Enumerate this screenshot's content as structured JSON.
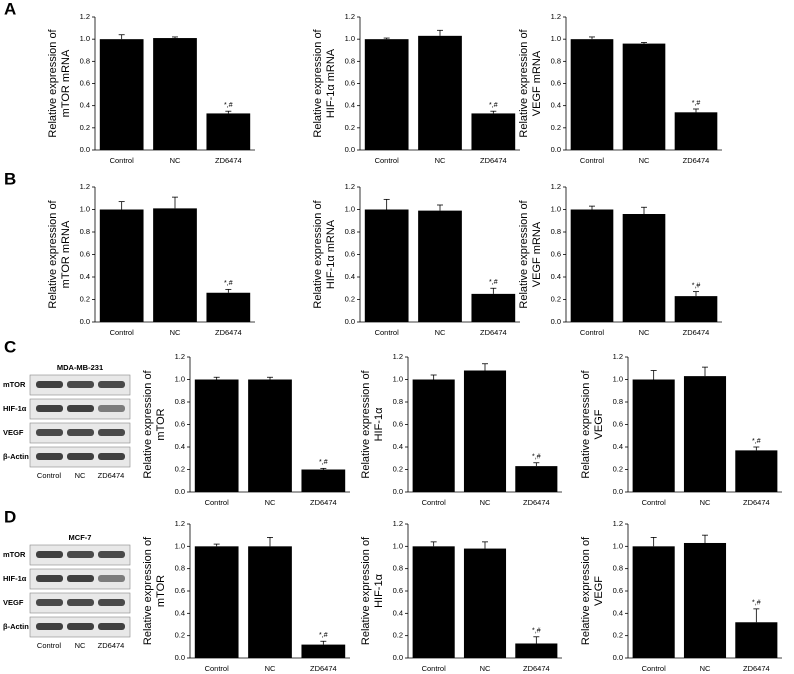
{
  "panel_labels": [
    "A",
    "B",
    "C",
    "D"
  ],
  "blots": [
    {
      "title": "MDA-MB-231",
      "rows": [
        "mTOR",
        "HIF-1α",
        "VEGF",
        "β-Actin"
      ],
      "lanes": [
        "Control",
        "NC",
        "ZD6474"
      ]
    },
    {
      "title": "MCF-7",
      "rows": [
        "mTOR",
        "HIF-1α",
        "VEGF",
        "β-Actin"
      ],
      "lanes": [
        "Control",
        "NC",
        "ZD6474"
      ]
    }
  ],
  "chart_data": [
    {
      "type": "bar",
      "ylabel": [
        "Relative expression of",
        "mTOR mRNA"
      ],
      "categories": [
        "Control",
        "NC",
        "ZD6474"
      ],
      "values": [
        1.0,
        1.01,
        0.33
      ],
      "errors": [
        0.04,
        0.01,
        0.02
      ],
      "color": "#000000",
      "annotations": [
        {
          "category": "ZD6474",
          "text": "*,#"
        }
      ],
      "ylim": [
        0,
        1.2
      ],
      "yticks": [
        {
          "value": 0,
          "label": "0.0"
        },
        0.2,
        0.4,
        0.6,
        0.8,
        {
          "value": 1,
          "label": "1.0"
        },
        1.2
      ]
    },
    {
      "type": "bar",
      "ylabel": [
        "Relative expression of",
        "HIF-1α mRNA"
      ],
      "categories": [
        "Control",
        "NC",
        "ZD6474"
      ],
      "values": [
        1.0,
        1.03,
        0.33
      ],
      "errors": [
        0.01,
        0.05,
        0.02
      ],
      "color": "#000000",
      "annotations": [
        {
          "category": "ZD6474",
          "text": "*,#"
        }
      ],
      "ylim": [
        0,
        1.2
      ],
      "yticks": [
        {
          "value": 0,
          "label": "0.0"
        },
        0.2,
        0.4,
        0.6,
        0.8,
        {
          "value": 1,
          "label": "1.0"
        },
        1.2
      ]
    },
    {
      "type": "bar",
      "ylabel": [
        "Relative expression of",
        "VEGF mRNA"
      ],
      "categories": [
        "Control",
        "NC",
        "ZD6474"
      ],
      "values": [
        1.0,
        0.96,
        0.34
      ],
      "errors": [
        0.02,
        0.01,
        0.03
      ],
      "color": "#000000",
      "annotations": [
        {
          "category": "ZD6474",
          "text": "*,#"
        }
      ],
      "ylim": [
        0,
        1.2
      ],
      "yticks": [
        {
          "value": 0,
          "label": "0.0"
        },
        0.2,
        0.4,
        0.6,
        0.8,
        {
          "value": 1,
          "label": "1.0"
        },
        1.2
      ]
    },
    {
      "type": "bar",
      "ylabel": [
        "Relative expression of",
        "mTOR mRNA"
      ],
      "categories": [
        "Control",
        "NC",
        "ZD6474"
      ],
      "values": [
        1.0,
        1.01,
        0.26
      ],
      "errors": [
        0.07,
        0.1,
        0.03
      ],
      "color": "#000000",
      "annotations": [
        {
          "category": "ZD6474",
          "text": "*,#"
        }
      ],
      "ylim": [
        0,
        1.2
      ],
      "yticks": [
        {
          "value": 0,
          "label": "0.0"
        },
        0.2,
        0.4,
        0.6,
        0.8,
        {
          "value": 1,
          "label": "1.0"
        },
        1.2
      ]
    },
    {
      "type": "bar",
      "ylabel": [
        "Relative expression of",
        "HIF-1α mRNA"
      ],
      "categories": [
        "Control",
        "NC",
        "ZD6474"
      ],
      "values": [
        1.0,
        0.99,
        0.25
      ],
      "errors": [
        0.09,
        0.05,
        0.05
      ],
      "color": "#000000",
      "annotations": [
        {
          "category": "ZD6474",
          "text": "*,#"
        }
      ],
      "ylim": [
        0,
        1.2
      ],
      "yticks": [
        {
          "value": 0,
          "label": "0.0"
        },
        0.2,
        0.4,
        0.6,
        0.8,
        {
          "value": 1,
          "label": "1.0"
        },
        1.2
      ]
    },
    {
      "type": "bar",
      "ylabel": [
        "Relative expression of",
        "VEGF mRNA"
      ],
      "categories": [
        "Control",
        "NC",
        "ZD6474"
      ],
      "values": [
        1.0,
        0.96,
        0.23
      ],
      "errors": [
        0.03,
        0.06,
        0.04
      ],
      "color": "#000000",
      "annotations": [
        {
          "category": "ZD6474",
          "text": "*,#"
        }
      ],
      "ylim": [
        0,
        1.2
      ],
      "yticks": [
        {
          "value": 0,
          "label": "0.0"
        },
        0.2,
        0.4,
        0.6,
        0.8,
        {
          "value": 1,
          "label": "1.0"
        },
        1.2
      ]
    },
    {
      "type": "bar",
      "ylabel": [
        "Relative expression of",
        "mTOR"
      ],
      "categories": [
        "Control",
        "NC",
        "ZD6474"
      ],
      "values": [
        1.0,
        1.0,
        0.2
      ],
      "errors": [
        0.02,
        0.02,
        0.01
      ],
      "color": "#000000",
      "annotations": [
        {
          "category": "ZD6474",
          "text": "*,#"
        }
      ],
      "ylim": [
        0,
        1.2
      ],
      "yticks": [
        {
          "value": 0,
          "label": "0.0"
        },
        0.2,
        0.4,
        0.6,
        0.8,
        {
          "value": 1,
          "label": "1.0"
        },
        1.2
      ]
    },
    {
      "type": "bar",
      "ylabel": [
        "Relative expression of",
        "HIF-1α"
      ],
      "categories": [
        "Control",
        "NC",
        "ZD6474"
      ],
      "values": [
        1.0,
        1.08,
        0.23
      ],
      "errors": [
        0.04,
        0.06,
        0.03
      ],
      "color": "#000000",
      "annotations": [
        {
          "category": "ZD6474",
          "text": "*,#"
        }
      ],
      "ylim": [
        0,
        1.2
      ],
      "yticks": [
        {
          "value": 0,
          "label": "0.0"
        },
        0.2,
        0.4,
        0.6,
        0.8,
        {
          "value": 1,
          "label": "1.0"
        },
        1.2
      ]
    },
    {
      "type": "bar",
      "ylabel": [
        "Relative expression of",
        "VEGF"
      ],
      "categories": [
        "Control",
        "NC",
        "ZD6474"
      ],
      "values": [
        1.0,
        1.03,
        0.37
      ],
      "errors": [
        0.08,
        0.08,
        0.03
      ],
      "color": "#000000",
      "annotations": [
        {
          "category": "ZD6474",
          "text": "*,#"
        }
      ],
      "ylim": [
        0,
        1.2
      ],
      "yticks": [
        {
          "value": 0,
          "label": "0.0"
        },
        0.2,
        0.4,
        0.6,
        0.8,
        {
          "value": 1,
          "label": "1.0"
        },
        1.2
      ]
    },
    {
      "type": "bar",
      "ylabel": [
        "Relative expression of",
        "mTOR"
      ],
      "categories": [
        "Control",
        "NC",
        "ZD6474"
      ],
      "values": [
        1.0,
        1.0,
        0.12
      ],
      "errors": [
        0.02,
        0.08,
        0.03
      ],
      "color": "#000000",
      "annotations": [
        {
          "category": "ZD6474",
          "text": "*,#"
        }
      ],
      "ylim": [
        0,
        1.2
      ],
      "yticks": [
        {
          "value": 0,
          "label": "0.0"
        },
        0.2,
        0.4,
        0.6,
        0.8,
        {
          "value": 1,
          "label": "1.0"
        },
        1.2
      ]
    },
    {
      "type": "bar",
      "ylabel": [
        "Relative expression of",
        "HIF-1α"
      ],
      "categories": [
        "Control",
        "NC",
        "ZD6474"
      ],
      "values": [
        1.0,
        0.98,
        0.13
      ],
      "errors": [
        0.04,
        0.06,
        0.06
      ],
      "color": "#000000",
      "annotations": [
        {
          "category": "ZD6474",
          "text": "*,#"
        }
      ],
      "ylim": [
        0,
        1.2
      ],
      "yticks": [
        {
          "value": 0,
          "label": "0.0"
        },
        0.2,
        0.4,
        0.6,
        0.8,
        {
          "value": 1,
          "label": "1.0"
        },
        1.2
      ]
    },
    {
      "type": "bar",
      "ylabel": [
        "Relative expression of",
        "VEGF"
      ],
      "categories": [
        "Control",
        "NC",
        "ZD6474"
      ],
      "values": [
        1.0,
        1.03,
        0.32
      ],
      "errors": [
        0.08,
        0.07,
        0.12
      ],
      "color": "#000000",
      "annotations": [
        {
          "category": "ZD6474",
          "text": "*,#"
        }
      ],
      "ylim": [
        0,
        1.2
      ],
      "yticks": [
        {
          "value": 0,
          "label": "0.0"
        },
        0.2,
        0.4,
        0.6,
        0.8,
        {
          "value": 1,
          "label": "1.0"
        },
        1.2
      ]
    }
  ]
}
